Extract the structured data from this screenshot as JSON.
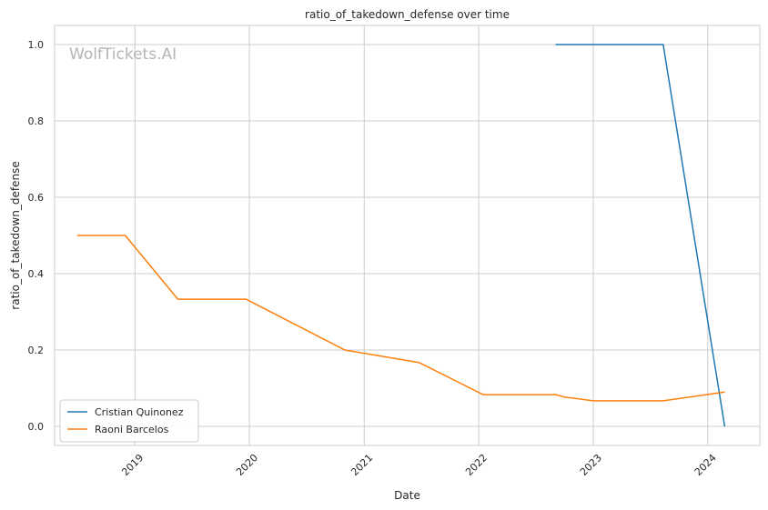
{
  "watermark": "WolfTickets.AI",
  "chart_data": {
    "type": "line",
    "title": "ratio_of_takedown_defense over time",
    "xlabel": "Date",
    "ylabel": "ratio_of_takedown_defense",
    "xlim": [
      "2018-04-20",
      "2024-06-15"
    ],
    "ylim": [
      -0.05,
      1.05
    ],
    "x_ticks": [
      "2019-01-01",
      "2020-01-01",
      "2021-01-01",
      "2022-01-01",
      "2023-01-01",
      "2024-01-01"
    ],
    "x_tick_labels": [
      "2019",
      "2020",
      "2021",
      "2022",
      "2023",
      "2024"
    ],
    "y_ticks": [
      0.0,
      0.2,
      0.4,
      0.6,
      0.8,
      1.0
    ],
    "y_tick_labels": [
      "0.0",
      "0.2",
      "0.4",
      "0.6",
      "0.8",
      "1.0"
    ],
    "grid": true,
    "legend_position": "lower-left",
    "series": [
      {
        "name": "Cristian Quinonez",
        "color": "#1f77b4",
        "points": [
          {
            "x": "2022-09-03",
            "y": 1.0
          },
          {
            "x": "2023-08-12",
            "y": 1.0
          },
          {
            "x": "2024-02-24",
            "y": 0.0
          }
        ]
      },
      {
        "name": "Raoni Barcelos",
        "color": "#ff7f0e",
        "points": [
          {
            "x": "2018-07-01",
            "y": 0.5
          },
          {
            "x": "2018-12-01",
            "y": 0.5
          },
          {
            "x": "2019-05-18",
            "y": 0.333
          },
          {
            "x": "2019-12-21",
            "y": 0.333
          },
          {
            "x": "2020-10-31",
            "y": 0.2
          },
          {
            "x": "2021-06-26",
            "y": 0.167
          },
          {
            "x": "2022-01-15",
            "y": 0.083
          },
          {
            "x": "2022-09-03",
            "y": 0.083
          },
          {
            "x": "2022-10-01",
            "y": 0.077
          },
          {
            "x": "2023-01-01",
            "y": 0.067
          },
          {
            "x": "2023-08-12",
            "y": 0.067
          },
          {
            "x": "2024-02-24",
            "y": 0.09
          }
        ]
      }
    ]
  }
}
